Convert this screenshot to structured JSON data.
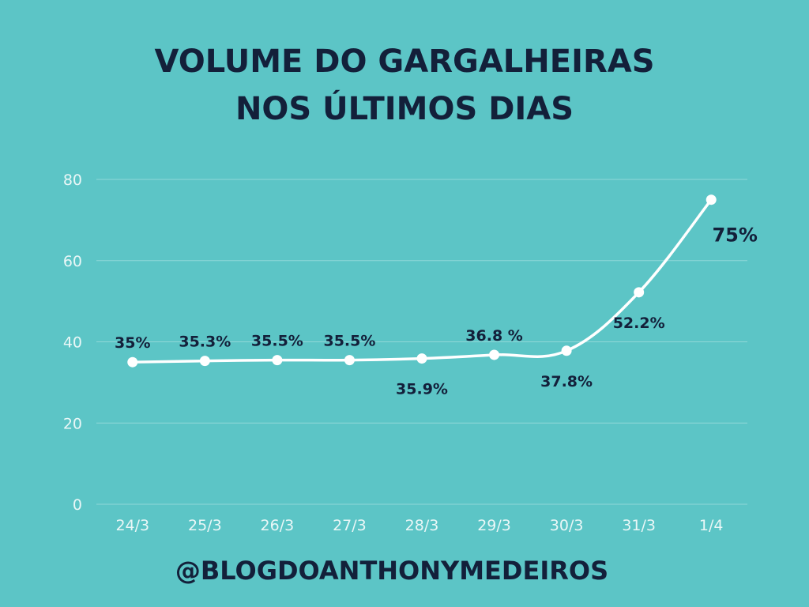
{
  "title_lines": [
    "VOLUME DO GARGALHEIRAS",
    "NOS ÚLTIMOS DIAS"
  ],
  "footer": "@BLOGDOANTHONYMEDEIROS",
  "colors": {
    "background": "#5cc5c6",
    "line": "#ffffff",
    "text": "#13203a",
    "grid": "#8fd8d8",
    "tick": "#eaf7f7"
  },
  "chart_data": {
    "type": "line",
    "title": "VOLUME DO GARGALHEIRAS NOS ÚLTIMOS DIAS",
    "categories": [
      "24/3",
      "25/3",
      "26/3",
      "27/3",
      "28/3",
      "29/3",
      "30/3",
      "31/3",
      "1/4"
    ],
    "series": [
      {
        "values": [
          35,
          35.3,
          35.5,
          35.5,
          35.9,
          36.8,
          37.8,
          52.2,
          75
        ],
        "labels": [
          "35%",
          "35.3%",
          "35.5%",
          "35.5%",
          "35.9%",
          "36.8 %",
          "37.8%",
          "52.2%",
          "75%"
        ],
        "label_positions": [
          "above",
          "above",
          "above",
          "above",
          "below",
          "above",
          "below",
          "below",
          "below"
        ]
      }
    ],
    "yticks": [
      0,
      20,
      40,
      60,
      80
    ],
    "ylim": [
      0,
      80
    ],
    "grid": true,
    "legend": "none"
  }
}
